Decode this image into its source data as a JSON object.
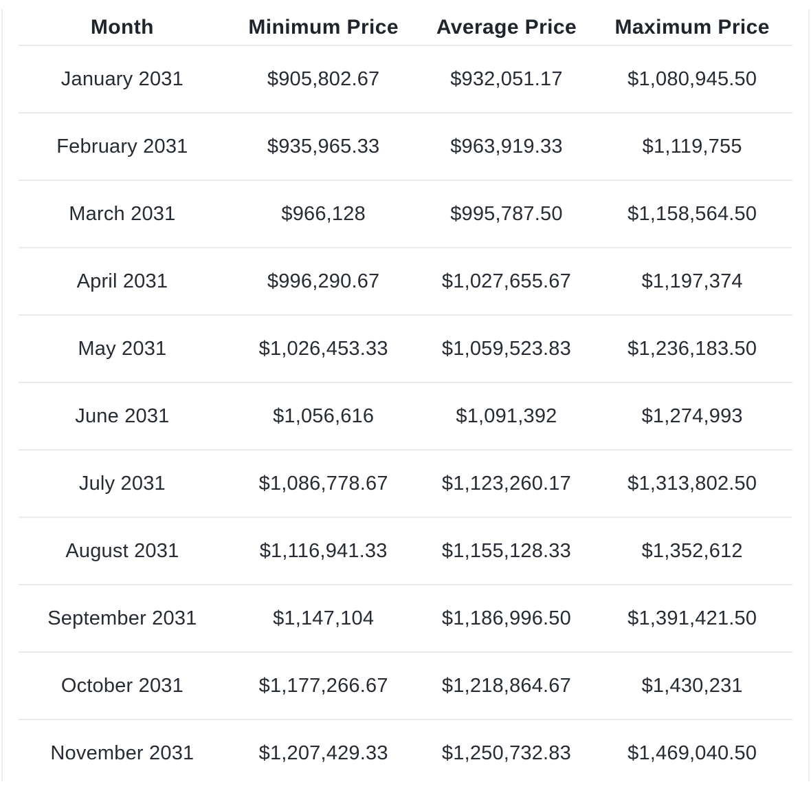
{
  "table": {
    "columns": [
      "Month",
      "Minimum Price",
      "Average Price",
      "Maximum Price"
    ],
    "rows": [
      {
        "month": "January 2031",
        "min": "$905,802.67",
        "avg": "$932,051.17",
        "max": "$1,080,945.50"
      },
      {
        "month": "February 2031",
        "min": "$935,965.33",
        "avg": "$963,919.33",
        "max": "$1,119,755"
      },
      {
        "month": "March 2031",
        "min": "$966,128",
        "avg": "$995,787.50",
        "max": "$1,158,564.50"
      },
      {
        "month": "April 2031",
        "min": "$996,290.67",
        "avg": "$1,027,655.67",
        "max": "$1,197,374"
      },
      {
        "month": "May 2031",
        "min": "$1,026,453.33",
        "avg": "$1,059,523.83",
        "max": "$1,236,183.50"
      },
      {
        "month": "June 2031",
        "min": "$1,056,616",
        "avg": "$1,091,392",
        "max": "$1,274,993"
      },
      {
        "month": "July 2031",
        "min": "$1,086,778.67",
        "avg": "$1,123,260.17",
        "max": "$1,313,802.50"
      },
      {
        "month": "August 2031",
        "min": "$1,116,941.33",
        "avg": "$1,155,128.33",
        "max": "$1,352,612"
      },
      {
        "month": "September 2031",
        "min": "$1,147,104",
        "avg": "$1,186,996.50",
        "max": "$1,391,421.50"
      },
      {
        "month": "October 2031",
        "min": "$1,177,266.67",
        "avg": "$1,218,864.67",
        "max": "$1,430,231"
      },
      {
        "month": "November 2031",
        "min": "$1,207,429.33",
        "avg": "$1,250,732.83",
        "max": "$1,469,040.50"
      }
    ]
  },
  "colors": {
    "header_text": "#20242c",
    "body_text": "#272b33",
    "divider": "#ececec",
    "background": "#ffffff"
  },
  "chart_data": {
    "type": "table",
    "title": "Monthly price forecast table for 2031",
    "columns": [
      "Month",
      "Minimum Price",
      "Average Price",
      "Maximum Price"
    ],
    "rows": [
      [
        "January 2031",
        "$905,802.67",
        "$932,051.17",
        "$1,080,945.50"
      ],
      [
        "February 2031",
        "$935,965.33",
        "$963,919.33",
        "$1,119,755"
      ],
      [
        "March 2031",
        "$966,128",
        "$995,787.50",
        "$1,158,564.50"
      ],
      [
        "April 2031",
        "$996,290.67",
        "$1,027,655.67",
        "$1,197,374"
      ],
      [
        "May 2031",
        "$1,026,453.33",
        "$1,059,523.83",
        "$1,236,183.50"
      ],
      [
        "June 2031",
        "$1,056,616",
        "$1,091,392",
        "$1,274,993"
      ],
      [
        "July 2031",
        "$1,086,778.67",
        "$1,123,260.17",
        "$1,313,802.50"
      ],
      [
        "August 2031",
        "$1,116,941.33",
        "$1,155,128.33",
        "$1,352,612"
      ],
      [
        "September 2031",
        "$1,147,104",
        "$1,186,996.50",
        "$1,391,421.50"
      ],
      [
        "October 2031",
        "$1,177,266.67",
        "$1,218,864.67",
        "$1,430,231"
      ],
      [
        "November 2031",
        "$1,207,429.33",
        "$1,250,732.83",
        "$1,469,040.50"
      ]
    ],
    "values_numeric": {
      "min": [
        905802.67,
        935965.33,
        966128,
        996290.67,
        1026453.33,
        1056616,
        1086778.67,
        1116941.33,
        1147104,
        1177266.67,
        1207429.33
      ],
      "avg": [
        932051.17,
        963919.33,
        995787.5,
        1027655.67,
        1059523.83,
        1091392,
        1123260.17,
        1155128.33,
        1186996.5,
        1218864.67,
        1250732.83
      ],
      "max": [
        1080945.5,
        1119755,
        1158564.5,
        1197374,
        1236183.5,
        1274993,
        1313802.5,
        1352612,
        1391421.5,
        1430231,
        1469040.5
      ]
    }
  }
}
